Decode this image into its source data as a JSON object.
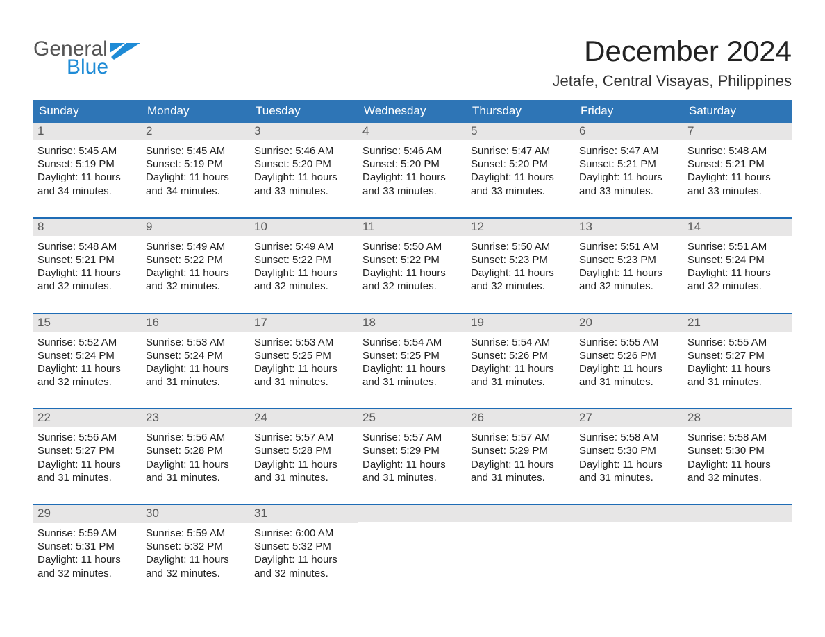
{
  "colors": {
    "header_blue": "#2e75b6",
    "accent_blue": "#1f6cb5",
    "day_header_bg": "#e7e6e6",
    "text_dark": "#333333",
    "text_gray": "#595959",
    "logo_gray": "#555555",
    "logo_blue": "#1e8bd6",
    "background": "#ffffff"
  },
  "typography": {
    "font_family": "Arial",
    "month_title_fontsize": 42,
    "location_fontsize": 22,
    "weekday_fontsize": 17,
    "day_body_fontsize": 15
  },
  "logo": {
    "line1": "General",
    "line2": "Blue"
  },
  "title": "December 2024",
  "location": "Jetafe, Central Visayas, Philippines",
  "weekdays": [
    "Sunday",
    "Monday",
    "Tuesday",
    "Wednesday",
    "Thursday",
    "Friday",
    "Saturday"
  ],
  "labels": {
    "sunrise": "Sunrise:",
    "sunset": "Sunset:",
    "daylight": "Daylight:"
  },
  "calendar": {
    "type": "calendar-month",
    "columns": 7,
    "rows": 5,
    "days": [
      {
        "num": "1",
        "sunrise": "5:45 AM",
        "sunset": "5:19 PM",
        "daylight": "11 hours and 34 minutes."
      },
      {
        "num": "2",
        "sunrise": "5:45 AM",
        "sunset": "5:19 PM",
        "daylight": "11 hours and 34 minutes."
      },
      {
        "num": "3",
        "sunrise": "5:46 AM",
        "sunset": "5:20 PM",
        "daylight": "11 hours and 33 minutes."
      },
      {
        "num": "4",
        "sunrise": "5:46 AM",
        "sunset": "5:20 PM",
        "daylight": "11 hours and 33 minutes."
      },
      {
        "num": "5",
        "sunrise": "5:47 AM",
        "sunset": "5:20 PM",
        "daylight": "11 hours and 33 minutes."
      },
      {
        "num": "6",
        "sunrise": "5:47 AM",
        "sunset": "5:21 PM",
        "daylight": "11 hours and 33 minutes."
      },
      {
        "num": "7",
        "sunrise": "5:48 AM",
        "sunset": "5:21 PM",
        "daylight": "11 hours and 33 minutes."
      },
      {
        "num": "8",
        "sunrise": "5:48 AM",
        "sunset": "5:21 PM",
        "daylight": "11 hours and 32 minutes."
      },
      {
        "num": "9",
        "sunrise": "5:49 AM",
        "sunset": "5:22 PM",
        "daylight": "11 hours and 32 minutes."
      },
      {
        "num": "10",
        "sunrise": "5:49 AM",
        "sunset": "5:22 PM",
        "daylight": "11 hours and 32 minutes."
      },
      {
        "num": "11",
        "sunrise": "5:50 AM",
        "sunset": "5:22 PM",
        "daylight": "11 hours and 32 minutes."
      },
      {
        "num": "12",
        "sunrise": "5:50 AM",
        "sunset": "5:23 PM",
        "daylight": "11 hours and 32 minutes."
      },
      {
        "num": "13",
        "sunrise": "5:51 AM",
        "sunset": "5:23 PM",
        "daylight": "11 hours and 32 minutes."
      },
      {
        "num": "14",
        "sunrise": "5:51 AM",
        "sunset": "5:24 PM",
        "daylight": "11 hours and 32 minutes."
      },
      {
        "num": "15",
        "sunrise": "5:52 AM",
        "sunset": "5:24 PM",
        "daylight": "11 hours and 32 minutes."
      },
      {
        "num": "16",
        "sunrise": "5:53 AM",
        "sunset": "5:24 PM",
        "daylight": "11 hours and 31 minutes."
      },
      {
        "num": "17",
        "sunrise": "5:53 AM",
        "sunset": "5:25 PM",
        "daylight": "11 hours and 31 minutes."
      },
      {
        "num": "18",
        "sunrise": "5:54 AM",
        "sunset": "5:25 PM",
        "daylight": "11 hours and 31 minutes."
      },
      {
        "num": "19",
        "sunrise": "5:54 AM",
        "sunset": "5:26 PM",
        "daylight": "11 hours and 31 minutes."
      },
      {
        "num": "20",
        "sunrise": "5:55 AM",
        "sunset": "5:26 PM",
        "daylight": "11 hours and 31 minutes."
      },
      {
        "num": "21",
        "sunrise": "5:55 AM",
        "sunset": "5:27 PM",
        "daylight": "11 hours and 31 minutes."
      },
      {
        "num": "22",
        "sunrise": "5:56 AM",
        "sunset": "5:27 PM",
        "daylight": "11 hours and 31 minutes."
      },
      {
        "num": "23",
        "sunrise": "5:56 AM",
        "sunset": "5:28 PM",
        "daylight": "11 hours and 31 minutes."
      },
      {
        "num": "24",
        "sunrise": "5:57 AM",
        "sunset": "5:28 PM",
        "daylight": "11 hours and 31 minutes."
      },
      {
        "num": "25",
        "sunrise": "5:57 AM",
        "sunset": "5:29 PM",
        "daylight": "11 hours and 31 minutes."
      },
      {
        "num": "26",
        "sunrise": "5:57 AM",
        "sunset": "5:29 PM",
        "daylight": "11 hours and 31 minutes."
      },
      {
        "num": "27",
        "sunrise": "5:58 AM",
        "sunset": "5:30 PM",
        "daylight": "11 hours and 31 minutes."
      },
      {
        "num": "28",
        "sunrise": "5:58 AM",
        "sunset": "5:30 PM",
        "daylight": "11 hours and 32 minutes."
      },
      {
        "num": "29",
        "sunrise": "5:59 AM",
        "sunset": "5:31 PM",
        "daylight": "11 hours and 32 minutes."
      },
      {
        "num": "30",
        "sunrise": "5:59 AM",
        "sunset": "5:32 PM",
        "daylight": "11 hours and 32 minutes."
      },
      {
        "num": "31",
        "sunrise": "6:00 AM",
        "sunset": "5:32 PM",
        "daylight": "11 hours and 32 minutes."
      }
    ]
  }
}
